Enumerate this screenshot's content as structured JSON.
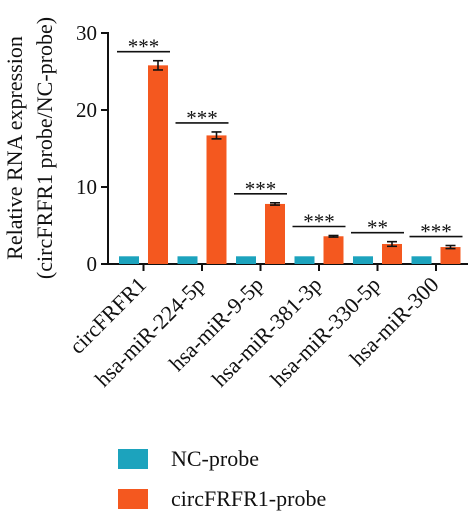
{
  "chart_data": {
    "type": "bar",
    "ylabel": [
      "Relative RNA expression",
      "(circFRFR1 probe/NC-probe)"
    ],
    "ylim": [
      0,
      30
    ],
    "yticks": [
      "0",
      "10",
      "20",
      "30"
    ],
    "categories": [
      "circFRFR1",
      "hsa-miR-224-5p",
      "hsa-miR-9-5p",
      "hsa-miR-381-3p",
      "hsa-miR-330-5p",
      "hsa-miR-300"
    ],
    "series": [
      {
        "name": "NC-probe",
        "color": "#1ca3bd",
        "values": [
          1.0,
          1.0,
          1.0,
          1.0,
          1.0,
          1.0
        ],
        "errors": [
          0.05,
          0.05,
          0.05,
          0.05,
          0.05,
          0.05
        ]
      },
      {
        "name": "circFRFR1-probe",
        "color": "#f4581f",
        "values": [
          25.8,
          16.7,
          7.8,
          3.6,
          2.6,
          2.2
        ],
        "errors": [
          0.6,
          0.45,
          0.15,
          0.1,
          0.3,
          0.2
        ]
      }
    ],
    "significance": [
      "***",
      "***",
      "***",
      "***",
      "**",
      "***"
    ],
    "legend_position": "bottom"
  }
}
